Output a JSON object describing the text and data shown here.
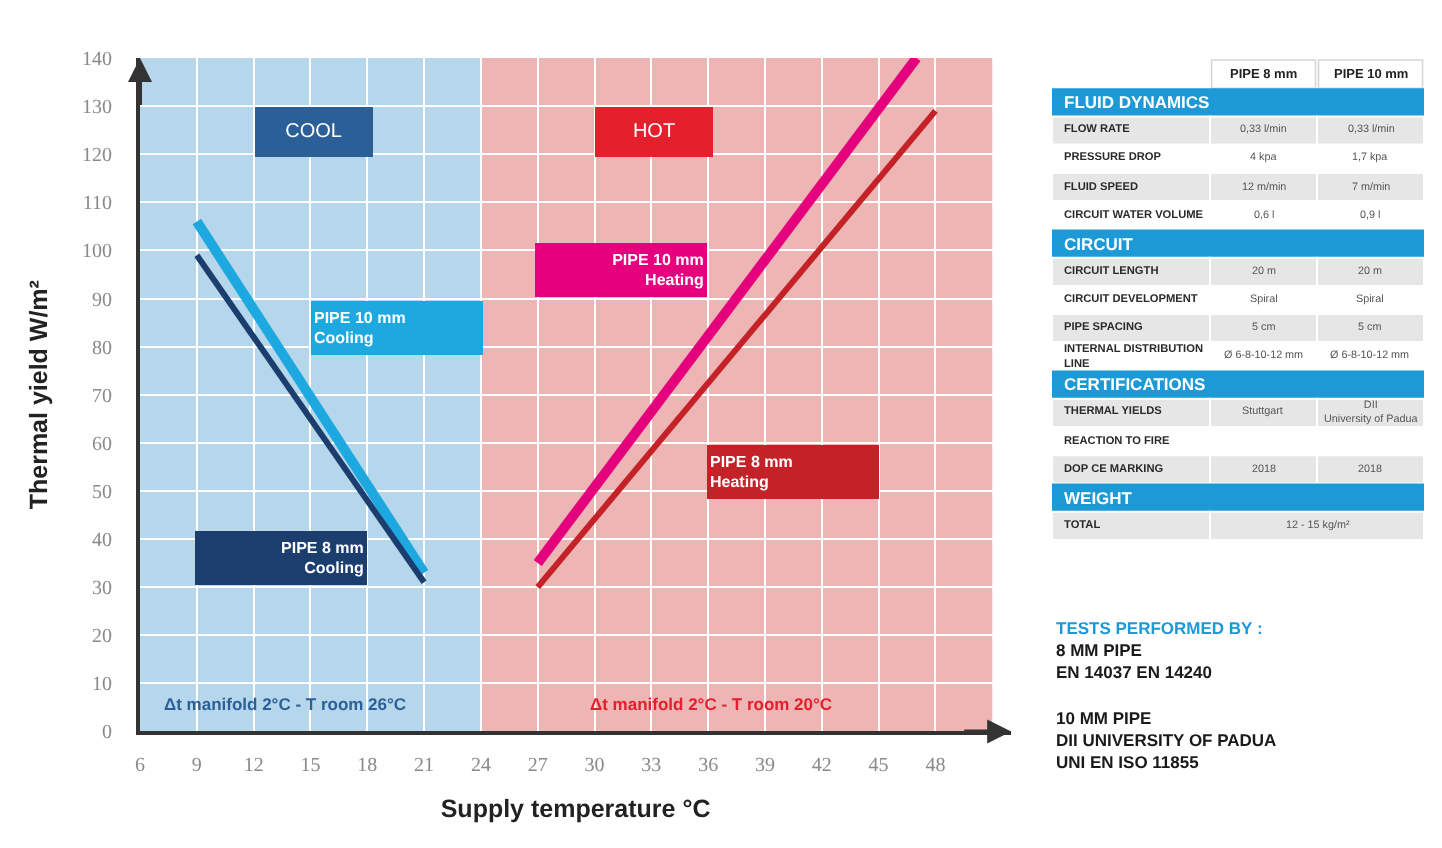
{
  "chart_data": [
    {
      "type": "line",
      "xlabel": "Supply temperature °C",
      "ylabel": "Thermal yield W/m²",
      "xlim": [
        6,
        52
      ],
      "xticks": [
        6,
        9,
        12,
        15,
        18,
        21,
        24,
        27,
        30,
        33,
        36,
        39,
        42,
        45,
        48
      ],
      "ylim": [
        0,
        140
      ],
      "yticks": [
        0,
        10,
        20,
        30,
        40,
        50,
        60,
        70,
        80,
        90,
        100,
        110,
        120,
        130,
        140
      ],
      "grid": true,
      "series": [
        {
          "name": "PIPE 10 mm Cooling",
          "color": "#1ea8e0",
          "x": [
            9,
            21
          ],
          "values": [
            106,
            33
          ]
        },
        {
          "name": "PIPE 8 mm Cooling",
          "color": "#1b3e6f",
          "x": [
            9,
            21
          ],
          "values": [
            99,
            31
          ]
        },
        {
          "name": "PIPE 10 mm Heating",
          "color": "#e6007e",
          "x": [
            27,
            47
          ],
          "values": [
            35,
            140
          ]
        },
        {
          "name": "PIPE 8 mm Heating",
          "color": "#c52128",
          "x": [
            27,
            48
          ],
          "values": [
            30,
            129
          ]
        }
      ],
      "bands": [
        {
          "axis": "x",
          "from": 6,
          "to": 24,
          "label": "COOL",
          "color": "#b6d7eb"
        },
        {
          "axis": "x",
          "from": 24,
          "to": 51,
          "label": "HOT",
          "color": "#edb5b3"
        }
      ],
      "annotations": [
        "Δt manifold 2°C - T room 26°C",
        "Δt manifold 2°C - T room 20°C"
      ]
    },
    {
      "type": "other",
      "color": "#1d9ad6",
      "categories": [
        "PIPE 8 mm",
        "PIPE 10 mm"
      ],
      "y_categories": [
        "FLUID DYNAMICS",
        "FLOW RATE",
        "PRESSURE DROP",
        "FLUID SPEED",
        "CIRCUIT WATER VOLUME",
        "CIRCUIT",
        "CIRCUIT LENGTH",
        "CIRCUIT DEVELOPMENT",
        "PIPE SPACING",
        "INTERNAL DISTRIBUTION LINE",
        "CERTIFICATIONS",
        "THERMAL YIELDS",
        "REACTION TO FIRE",
        "DOP CE MARKING",
        "WEIGHT",
        "TOTAL"
      ],
      "cell_labels": [
        null,
        [
          "0,33 l/min",
          "0,33 l/min"
        ],
        [
          "4 kpa",
          "1,7 kpa"
        ],
        [
          "12 m/min",
          "7 m/min"
        ],
        [
          "0,6 l",
          "0,9 l"
        ],
        null,
        [
          "20 m",
          "20 m"
        ],
        [
          "Spiral",
          "Spiral"
        ],
        [
          "5 cm",
          "5 cm"
        ],
        [
          "Ø 6-8-10-12 mm",
          "Ø 6-8-10-12 mm"
        ],
        null,
        [
          "Stuttgart",
          "DII University of Padua"
        ],
        [
          null,
          null
        ],
        [
          "2018",
          "2018"
        ],
        null,
        [
          "12 - 15 kg/m²"
        ]
      ],
      "annotations": [
        "TESTS PERFORMED BY :",
        "8 MM PIPE\nEN 14037 EN 14240",
        "10 MM PIPE\nDII UNIVERSITY OF PADUA\nUNI EN ISO 11855"
      ]
    }
  ]
}
